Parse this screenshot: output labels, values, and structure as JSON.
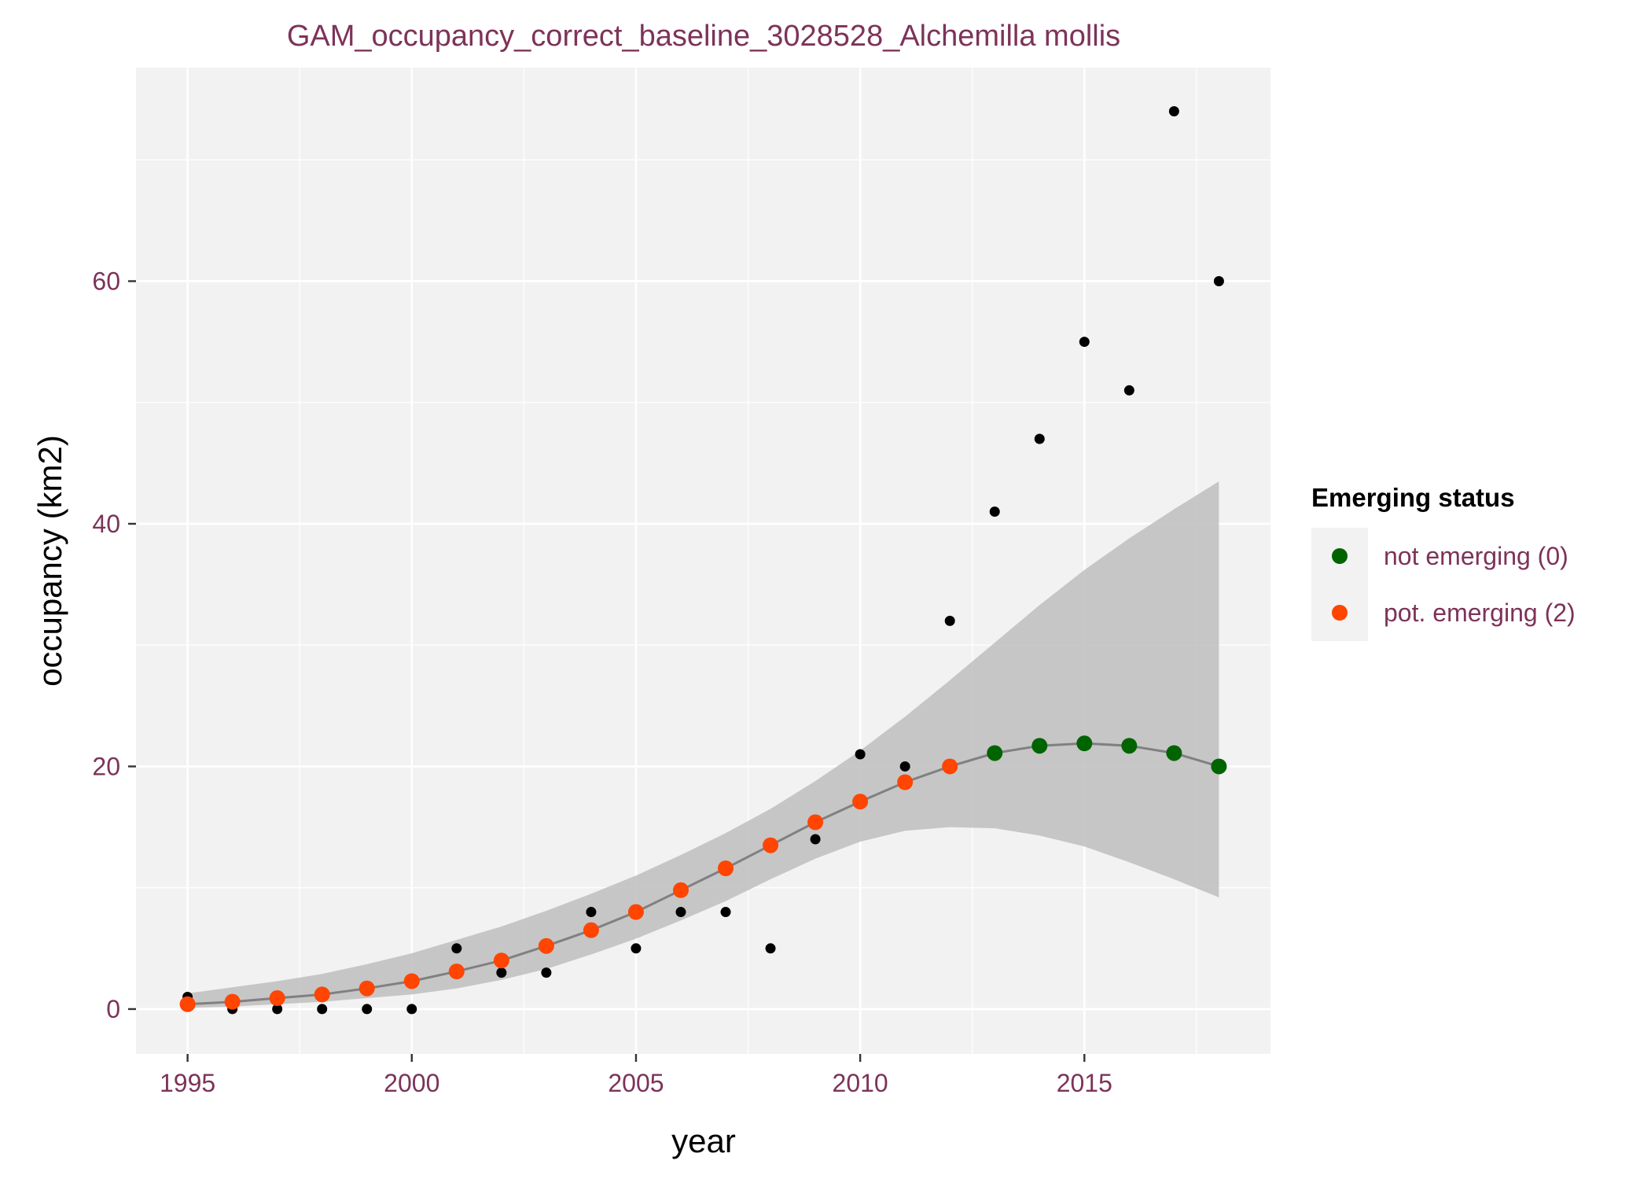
{
  "colors": {
    "panel": "#f2f2f2",
    "grid": "#ffffff",
    "band": "#bebebe",
    "fit_line": "#808080",
    "observed": "#000000",
    "not_emerging": "#006400",
    "pot_emerging": "#ff4500",
    "label_text": "#7d3359"
  },
  "chart_data": {
    "type": "scatter",
    "title": "GAM_occupancy_correct_baseline_3028528_Alchemilla mollis",
    "xlabel": "year",
    "ylabel": "occupancy (km2)",
    "xlim": [
      1993.85,
      2019.15
    ],
    "ylim": [
      -3.7,
      77.6
    ],
    "x_ticks": [
      1995,
      2000,
      2005,
      2010,
      2015
    ],
    "y_ticks": [
      0,
      20,
      40,
      60
    ],
    "grid": true,
    "legend": {
      "title": "Emerging status",
      "placement": "right",
      "entries": [
        {
          "label": "not emerging (0)",
          "color": "#006400"
        },
        {
          "label": "pot. emerging (2)",
          "color": "#ff4500"
        }
      ]
    },
    "observed": {
      "x": [
        1995,
        1996,
        1997,
        1998,
        1999,
        2000,
        2001,
        2002,
        2003,
        2004,
        2005,
        2006,
        2007,
        2008,
        2009,
        2010,
        2011,
        2012,
        2013,
        2014,
        2015,
        2016,
        2017,
        2018
      ],
      "y": [
        1,
        0,
        0,
        0,
        0,
        0,
        5,
        3,
        3,
        8,
        5,
        8,
        8,
        5,
        14,
        21,
        20,
        32,
        41,
        47,
        55,
        51,
        74,
        60
      ]
    },
    "fit": {
      "x": [
        1995,
        1996,
        1997,
        1998,
        1999,
        2000,
        2001,
        2002,
        2003,
        2004,
        2005,
        2006,
        2007,
        2008,
        2009,
        2010,
        2011,
        2012,
        2013,
        2014,
        2015,
        2016,
        2017,
        2018
      ],
      "y": [
        0.4,
        0.6,
        0.9,
        1.2,
        1.7,
        2.3,
        3.1,
        4.0,
        5.2,
        6.5,
        8.0,
        9.8,
        11.6,
        13.5,
        15.4,
        17.1,
        18.7,
        20.0,
        21.1,
        21.7,
        21.9,
        21.7,
        21.1,
        20.0
      ],
      "lower": [
        0.1,
        0.2,
        0.4,
        0.6,
        0.9,
        1.2,
        1.7,
        2.4,
        3.3,
        4.5,
        5.8,
        7.3,
        8.9,
        10.7,
        12.4,
        13.8,
        14.7,
        15.0,
        14.9,
        14.3,
        13.4,
        12.1,
        10.7,
        9.2
      ],
      "upper": [
        1.3,
        1.8,
        2.3,
        2.9,
        3.7,
        4.6,
        5.7,
        6.8,
        8.1,
        9.5,
        11.0,
        12.7,
        14.5,
        16.5,
        18.8,
        21.3,
        24.1,
        27.1,
        30.2,
        33.3,
        36.2,
        38.8,
        41.2,
        43.5
      ],
      "status": [
        2,
        2,
        2,
        2,
        2,
        2,
        2,
        2,
        2,
        2,
        2,
        2,
        2,
        2,
        2,
        2,
        2,
        2,
        0,
        0,
        0,
        0,
        0,
        0
      ]
    }
  }
}
